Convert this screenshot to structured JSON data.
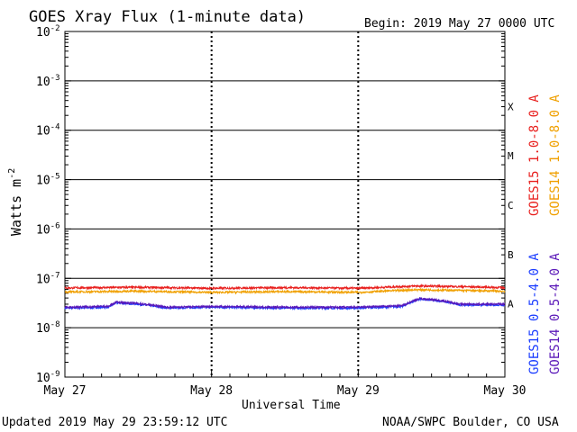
{
  "chart_data": {
    "type": "line",
    "title": "GOES Xray Flux (1-minute data)",
    "begin_label": "Begin:  2019 May 27 0000 UTC",
    "ylabel_main": "Watts m",
    "ylabel_sup": "-2",
    "xlabel": "Universal Time",
    "y_scale": "log",
    "ylim": [
      1e-09,
      0.01
    ],
    "y_ticks": [
      {
        "mantissa": "10",
        "exp": "-2"
      },
      {
        "mantissa": "10",
        "exp": "-3"
      },
      {
        "mantissa": "10",
        "exp": "-4"
      },
      {
        "mantissa": "10",
        "exp": "-5"
      },
      {
        "mantissa": "10",
        "exp": "-6"
      },
      {
        "mantissa": "10",
        "exp": "-7"
      },
      {
        "mantissa": "10",
        "exp": "-8"
      },
      {
        "mantissa": "10",
        "exp": "-9"
      }
    ],
    "x_ticks": [
      "May 27",
      "May 28",
      "May 29",
      "May 30"
    ],
    "xlim_days": [
      0,
      3
    ],
    "flare_classes": [
      "X",
      "M",
      "C",
      "B",
      "A"
    ],
    "grid": true,
    "legend_placement": "right",
    "series": [
      {
        "name": "GOES15 1.0-8.0 A",
        "color": "#e8201e",
        "points": [
          [
            0,
            6.4e-08
          ],
          [
            0.5,
            6.6e-08
          ],
          [
            1.0,
            6.3e-08
          ],
          [
            1.5,
            6.5e-08
          ],
          [
            2.0,
            6.3e-08
          ],
          [
            2.4,
            7e-08
          ],
          [
            2.7,
            6.8e-08
          ],
          [
            3.0,
            6.5e-08
          ]
        ]
      },
      {
        "name": "GOES14 1.0-8.0 A",
        "color": "#f0a000",
        "points": [
          [
            0,
            5.3e-08
          ],
          [
            0.5,
            5.5e-08
          ],
          [
            1.0,
            5.2e-08
          ],
          [
            1.5,
            5.4e-08
          ],
          [
            2.0,
            5.2e-08
          ],
          [
            2.4,
            5.9e-08
          ],
          [
            2.7,
            5.7e-08
          ],
          [
            3.0,
            5.5e-08
          ]
        ]
      },
      {
        "name": "GOES15 0.5-4.0 A",
        "color": "#1a3cff",
        "points": [
          [
            0,
            2.5e-08
          ],
          [
            0.3,
            2.6e-08
          ],
          [
            0.35,
            3.2e-08
          ],
          [
            0.5,
            3e-08
          ],
          [
            0.7,
            2.5e-08
          ],
          [
            1.0,
            2.6e-08
          ],
          [
            1.5,
            2.5e-08
          ],
          [
            2.0,
            2.5e-08
          ],
          [
            2.3,
            2.7e-08
          ],
          [
            2.42,
            3.8e-08
          ],
          [
            2.55,
            3.5e-08
          ],
          [
            2.7,
            2.9e-08
          ],
          [
            3.0,
            2.9e-08
          ]
        ]
      },
      {
        "name": "GOES14 0.5-4.0 A",
        "color": "#5a18b8",
        "points": [
          [
            0,
            2.6e-08
          ],
          [
            0.3,
            2.7e-08
          ],
          [
            0.35,
            3.3e-08
          ],
          [
            0.5,
            3.1e-08
          ],
          [
            0.7,
            2.6e-08
          ],
          [
            1.0,
            2.7e-08
          ],
          [
            1.5,
            2.6e-08
          ],
          [
            2.0,
            2.6e-08
          ],
          [
            2.3,
            2.8e-08
          ],
          [
            2.42,
            3.9e-08
          ],
          [
            2.55,
            3.6e-08
          ],
          [
            2.7,
            3e-08
          ],
          [
            3.0,
            3e-08
          ]
        ]
      }
    ]
  },
  "footer": {
    "updated": "Updated 2019 May 29 23:59:12 UTC",
    "credit": "NOAA/SWPC Boulder, CO USA"
  }
}
